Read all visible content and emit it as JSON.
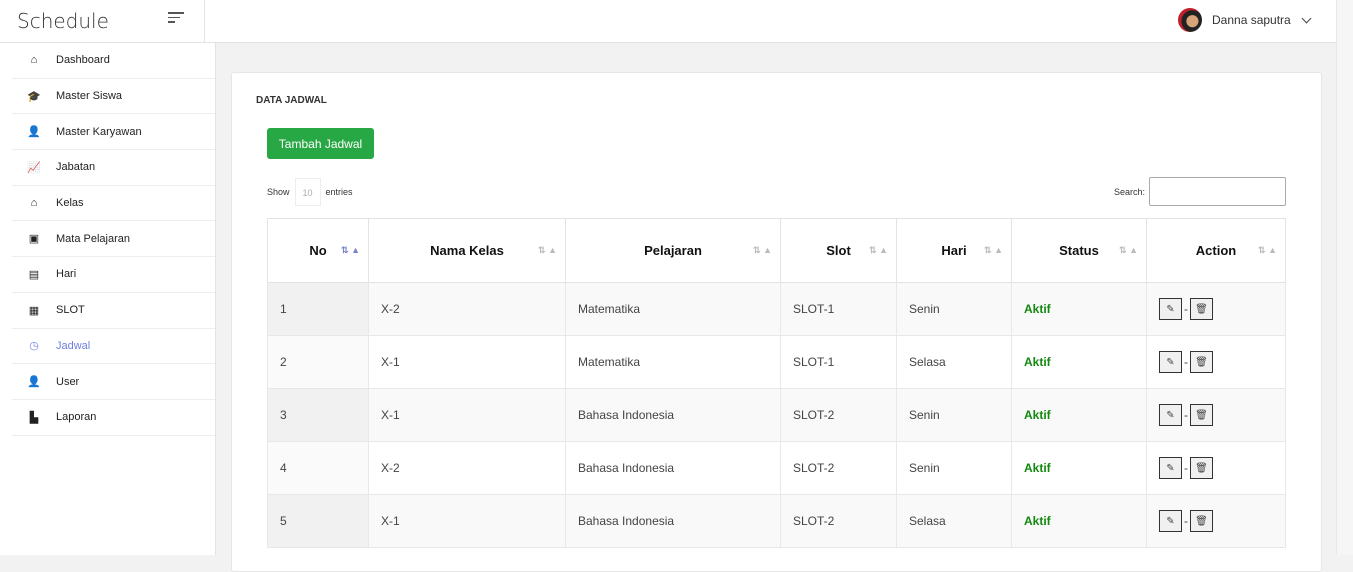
{
  "app": {
    "title": "Schedule"
  },
  "user": {
    "name": "Danna saputra"
  },
  "sidebar": {
    "items": [
      {
        "label": "Dashboard",
        "icon": "home-icon",
        "glyph": "⌂"
      },
      {
        "label": "Master Siswa",
        "icon": "graduation-cap-icon",
        "glyph": "🎓"
      },
      {
        "label": "Master Karyawan",
        "icon": "employee-icon",
        "glyph": "👤"
      },
      {
        "label": "Jabatan",
        "icon": "chart-line-icon",
        "glyph": "📈"
      },
      {
        "label": "Kelas",
        "icon": "house-icon",
        "glyph": "⌂"
      },
      {
        "label": "Mata Pelajaran",
        "icon": "book-icon",
        "glyph": "▣"
      },
      {
        "label": "Hari",
        "icon": "calendar-icon",
        "glyph": "▤"
      },
      {
        "label": "SLOT",
        "icon": "calendar-clock-icon",
        "glyph": "▦"
      },
      {
        "label": "Jadwal",
        "icon": "clock-icon",
        "glyph": "◷",
        "active": true
      },
      {
        "label": "User",
        "icon": "user-icon",
        "glyph": "👤"
      },
      {
        "label": "Laporan",
        "icon": "file-icon",
        "glyph": "▙"
      }
    ]
  },
  "card": {
    "title": "DATA JADWAL",
    "add_button": "Tambah Jadwal"
  },
  "table_controls": {
    "show": "Show",
    "entries_value": "10",
    "entries": "entries",
    "search_label": "Search:",
    "search_value": ""
  },
  "table": {
    "columns": [
      "No",
      "Nama Kelas",
      "Pelajaran",
      "Slot",
      "Hari",
      "Status",
      "Action"
    ],
    "rows": [
      [
        "1",
        "X-2",
        "Matematika",
        "SLOT-1",
        "Senin",
        "Aktif"
      ],
      [
        "2",
        "X-1",
        "Matematika",
        "SLOT-1",
        "Selasa",
        "Aktif"
      ],
      [
        "3",
        "X-1",
        "Bahasa Indonesia",
        "SLOT-2",
        "Senin",
        "Aktif"
      ],
      [
        "4",
        "X-2",
        "Bahasa Indonesia",
        "SLOT-2",
        "Senin",
        "Aktif"
      ],
      [
        "5",
        "X-1",
        "Bahasa Indonesia",
        "SLOT-2",
        "Selasa",
        "Aktif"
      ]
    ],
    "action_separator": "-"
  },
  "colors": {
    "accent": "#28a745",
    "active_nav": "#6f7fe0",
    "status_active": "#13880f"
  }
}
